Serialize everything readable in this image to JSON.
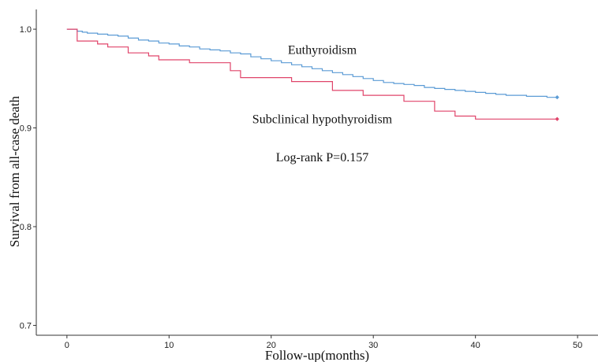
{
  "chart_data": {
    "type": "line",
    "step": true,
    "xlabel": "Follow-up(months)",
    "ylabel": "Survival from all-case death",
    "xlim": [
      -3,
      52
    ],
    "ylim": [
      0.69,
      1.02
    ],
    "xticks": [
      0,
      10,
      20,
      30,
      40,
      50
    ],
    "yticks": [
      0.7,
      0.8,
      0.9,
      1.0
    ],
    "ytick_labels": [
      "0.7",
      "0.8",
      "0.9",
      "1.0"
    ],
    "grid": false,
    "legend": "none",
    "series": [
      {
        "name": "Euthyroidism",
        "color": "#5b9bd5",
        "censor_marker": "diamond",
        "x": [
          0,
          1,
          1.5,
          2,
          3,
          4,
          5,
          6,
          7,
          8,
          9,
          10,
          11,
          12,
          13,
          14,
          15,
          16,
          17,
          18,
          19,
          20,
          21,
          22,
          23,
          24,
          25,
          26,
          27,
          28,
          29,
          30,
          31,
          32,
          33,
          34,
          35,
          36,
          37,
          38,
          39,
          40,
          41,
          42,
          43,
          44,
          45,
          46,
          47,
          48
        ],
        "y": [
          1.0,
          0.998,
          0.997,
          0.996,
          0.995,
          0.994,
          0.993,
          0.991,
          0.989,
          0.988,
          0.986,
          0.985,
          0.983,
          0.982,
          0.98,
          0.979,
          0.978,
          0.976,
          0.975,
          0.972,
          0.97,
          0.968,
          0.966,
          0.964,
          0.962,
          0.96,
          0.958,
          0.956,
          0.954,
          0.952,
          0.95,
          0.948,
          0.946,
          0.945,
          0.944,
          0.943,
          0.941,
          0.94,
          0.939,
          0.938,
          0.937,
          0.936,
          0.935,
          0.934,
          0.933,
          0.933,
          0.932,
          0.932,
          0.931,
          0.931
        ]
      },
      {
        "name": "Subclinical hypothyroidism",
        "color": "#e0446a",
        "censor_marker": "diamond",
        "x": [
          0,
          1,
          3,
          4,
          6,
          8,
          9,
          12,
          16,
          17,
          22,
          26,
          29,
          33,
          36,
          38,
          40,
          48
        ],
        "y": [
          1.0,
          0.988,
          0.985,
          0.982,
          0.976,
          0.973,
          0.969,
          0.966,
          0.958,
          0.951,
          0.947,
          0.938,
          0.933,
          0.927,
          0.917,
          0.912,
          0.909,
          0.909
        ]
      }
    ],
    "annotations": [
      {
        "text": "Euthyroidism",
        "x": 25,
        "y": 0.979
      },
      {
        "text": "Subclinical hypothyroidism",
        "x": 25,
        "y": 0.909
      },
      {
        "text": "Log-rank P=0.157",
        "x": 25,
        "y": 0.87
      }
    ]
  }
}
